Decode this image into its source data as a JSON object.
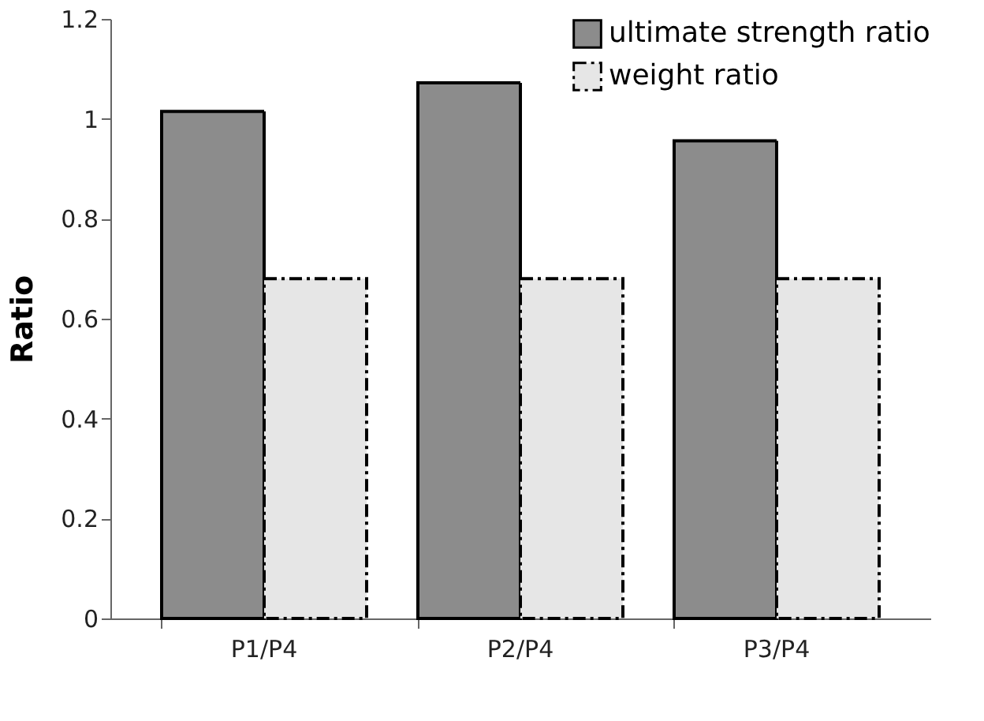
{
  "chart_data": {
    "type": "bar",
    "ylabel": "Ratio",
    "categories": [
      "P1/P4",
      "P2/P4",
      "P3/P4"
    ],
    "series": [
      {
        "name": "ultimate strength ratio",
        "color": "#8c8c8c",
        "line_style": "solid",
        "values": [
          1.015,
          1.072,
          0.956
        ]
      },
      {
        "name": "weight ratio",
        "color": "#e6e6e6",
        "line_style": "dashed",
        "values": [
          0.68,
          0.68,
          0.68
        ]
      }
    ],
    "ylim": [
      0,
      1.2
    ],
    "yticks": [
      0,
      0.2,
      0.4,
      0.6,
      0.8,
      1,
      1.2
    ],
    "grid": false,
    "legend": "top right"
  }
}
